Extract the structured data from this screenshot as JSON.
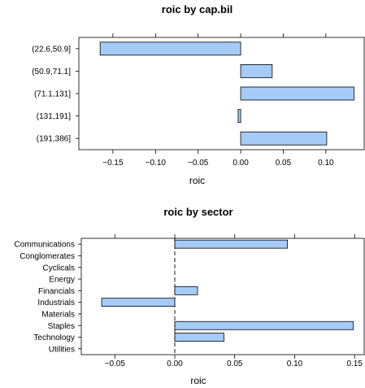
{
  "chart_data": [
    {
      "type": "bar",
      "orientation": "horizontal",
      "title": "roic by cap.bil",
      "xlabel": "roic",
      "ylabel": "",
      "categories": [
        "(22.6,50.9]",
        "(50.9,71.1]",
        "(71.1,131]",
        "(131,191]",
        "(191,386]"
      ],
      "values": [
        -0.165,
        0.037,
        0.133,
        -0.003,
        0.101
      ],
      "xlim": [
        -0.19,
        0.145
      ],
      "xticks": [
        -0.15,
        -0.1,
        -0.05,
        0.0,
        0.05,
        0.1
      ],
      "xtick_labels": [
        "−0.15",
        "−0.10",
        "−0.05",
        "0.00",
        "0.05",
        "0.10"
      ],
      "grid": false,
      "reference_line_at_zero": false
    },
    {
      "type": "bar",
      "orientation": "horizontal",
      "title": "roic by sector",
      "xlabel": "roic",
      "ylabel": "",
      "categories": [
        "Communications",
        "Conglomerates",
        "Cyclicals",
        "Energy",
        "Financials",
        "Industrials",
        "Materials",
        "Staples",
        "Technology",
        "Utilities"
      ],
      "values": [
        0.094,
        0.0,
        0.0,
        0.0,
        0.019,
        -0.061,
        0.0,
        0.149,
        0.041,
        0.0
      ],
      "xlim": [
        -0.078,
        0.158
      ],
      "xticks": [
        -0.05,
        0.0,
        0.05,
        0.1,
        0.15
      ],
      "xtick_labels": [
        "−0.05",
        "0.00",
        "0.05",
        "0.10",
        "0.15"
      ],
      "grid": false,
      "reference_line_at_zero": true
    }
  ]
}
